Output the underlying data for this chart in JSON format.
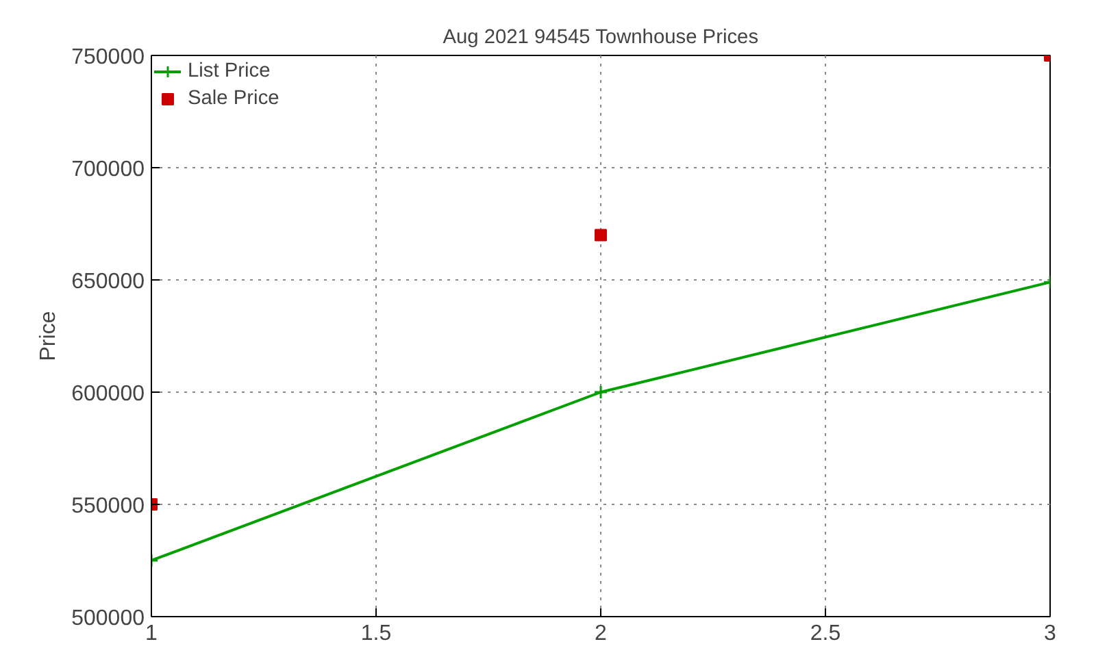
{
  "chart_data": {
    "type": "line",
    "title": "Aug 2021 94545 Townhouse Prices",
    "ylabel": "Price",
    "x": [
      1,
      2,
      3
    ],
    "series": [
      {
        "name": "List Price",
        "color": "#00a000",
        "values": [
          525000,
          600000,
          649000
        ],
        "marker": "cross",
        "line_style": "solid"
      },
      {
        "name": "Sale Price",
        "color": "#cc0000",
        "values": [
          550000,
          670000,
          750000
        ],
        "type": "scatter",
        "marker": "square"
      }
    ],
    "xlim": [
      1,
      3
    ],
    "xticks": [
      1,
      1.5,
      2,
      2.5,
      3
    ],
    "ylim": [
      500000,
      750000
    ],
    "yticks": [
      500000,
      550000,
      600000,
      650000,
      700000,
      750000
    ],
    "grid": true,
    "legend": "top left"
  }
}
